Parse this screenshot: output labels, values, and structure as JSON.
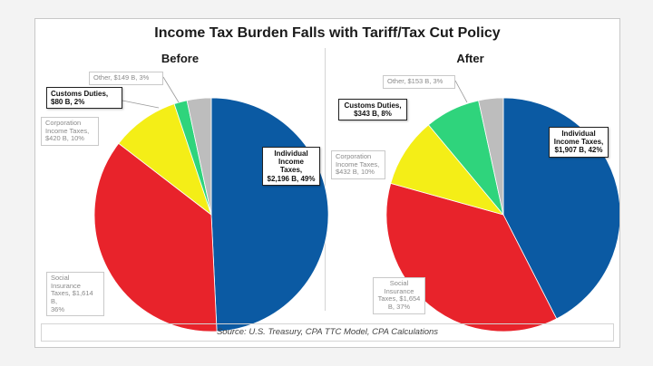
{
  "title": "Income Tax Burden Falls with Tariff/Tax Cut Policy",
  "source": "Source: U.S. Treasury, CPA TTC Model, CPA Calculations",
  "chart_data": [
    {
      "type": "pie",
      "title": "Before",
      "slices": [
        {
          "label": "Individual Income Taxes, $2,196 B, 49%",
          "value": 2196,
          "percent": 49,
          "color": "#0b5aa3"
        },
        {
          "label": "Social Insurance Taxes, $1,614 B, 36%",
          "value": 1614,
          "percent": 36,
          "color": "#e8232b"
        },
        {
          "label": "Corporation Income Taxes, $420 B, 10%",
          "value": 420,
          "percent": 10,
          "color": "#f4ee17"
        },
        {
          "label": "Customs Duties, $80 B, 2%",
          "value": 80,
          "percent": 2,
          "color": "#2fd47c"
        },
        {
          "label": "Other, $149 B, 3%",
          "value": 149,
          "percent": 3,
          "color": "#bdbdbd"
        }
      ]
    },
    {
      "type": "pie",
      "title": "After",
      "slices": [
        {
          "label": "Individual Income Taxes, $1,907 B, 42%",
          "value": 1907,
          "percent": 42,
          "color": "#0b5aa3"
        },
        {
          "label": "Social Insurance Taxes, $1,654 B, 37%",
          "value": 1654,
          "percent": 37,
          "color": "#e8232b"
        },
        {
          "label": "Corporation Income Taxes, $432 B, 10%",
          "value": 432,
          "percent": 10,
          "color": "#f4ee17"
        },
        {
          "label": "Customs Duties, $343 B, 8%",
          "value": 343,
          "percent": 8,
          "color": "#2fd47c"
        },
        {
          "label": "Other, $153 B, 3%",
          "value": 153,
          "percent": 3,
          "color": "#bdbdbd"
        }
      ]
    }
  ],
  "labels": {
    "before": {
      "individual": {
        "line1": "Individual",
        "line2": "Income Taxes,",
        "line3": "$2,196 B, 49%"
      },
      "social": {
        "line1": "Social",
        "line2": "Insurance",
        "line3": "Taxes, $1,614 B,",
        "line4": "36%"
      },
      "corporation": {
        "line1": "Corporation",
        "line2": "Income Taxes,",
        "line3": "$420 B, 10%"
      },
      "customs": {
        "line1": "Customs Duties,",
        "line2": "$80 B, 2%"
      },
      "other": {
        "line1": "Other, $149 B, 3%"
      }
    },
    "after": {
      "individual": {
        "line1": "Individual",
        "line2": "Income Taxes,",
        "line3": "$1,907 B, 42%"
      },
      "social": {
        "line1": "Social",
        "line2": "Insurance",
        "line3": "Taxes, $1,654",
        "line4": "B, 37%"
      },
      "corporation": {
        "line1": "Corporation",
        "line2": "Income Taxes,",
        "line3": "$432 B, 10%"
      },
      "customs": {
        "line1": "Customs Duties,",
        "line2": "$343 B, 8%"
      },
      "other": {
        "line1": "Other, $153 B, 3%"
      }
    }
  }
}
